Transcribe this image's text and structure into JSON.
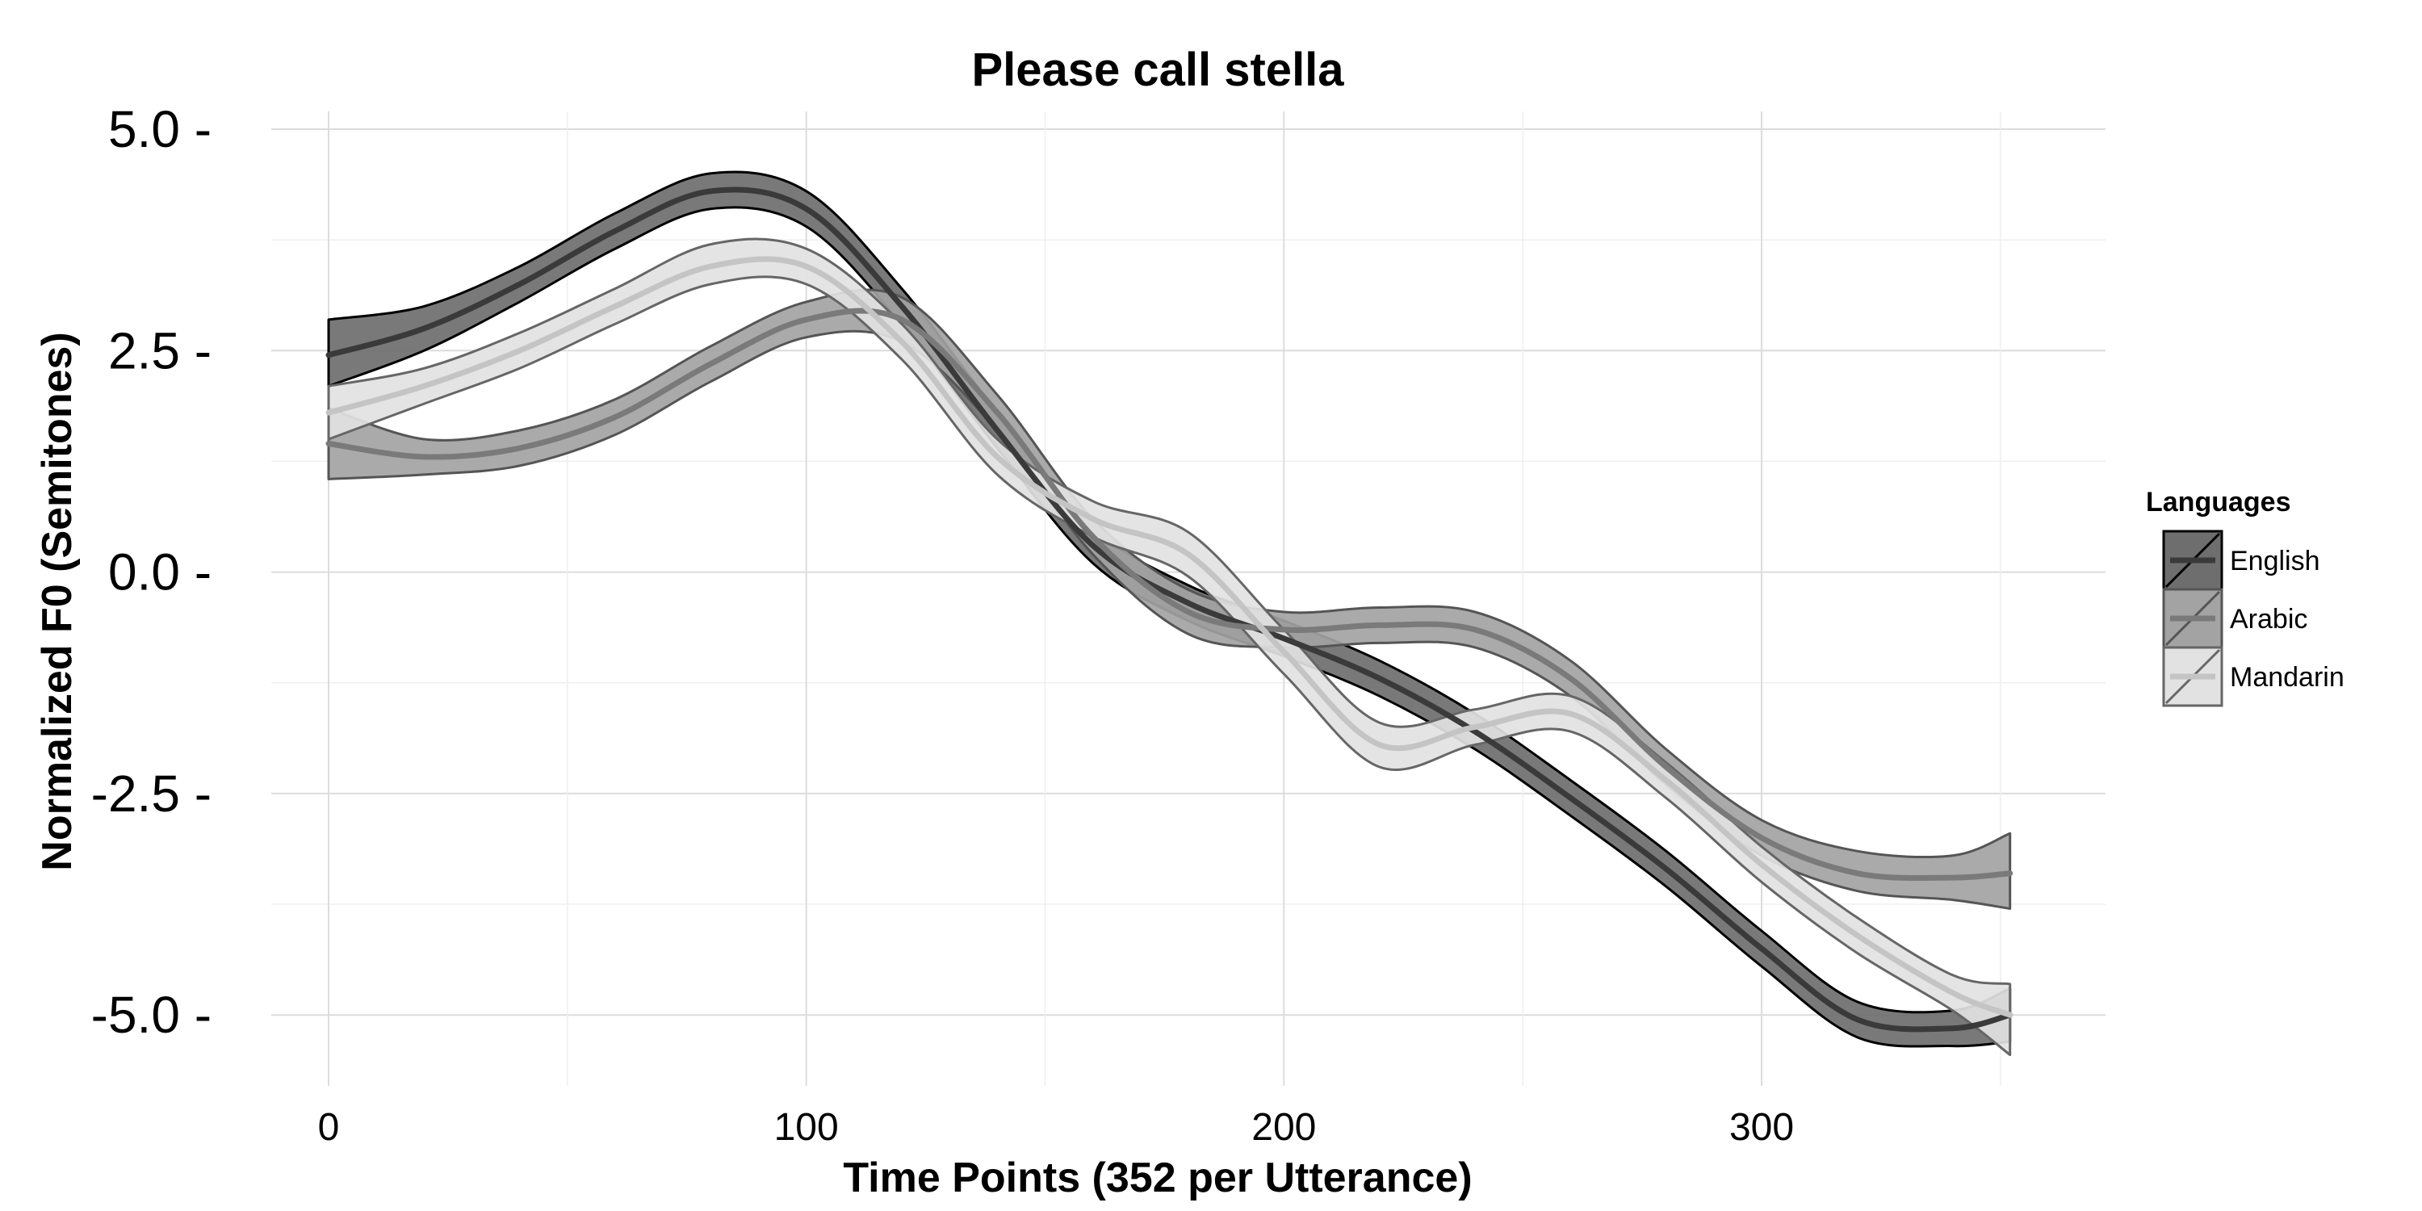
{
  "chart_data": {
    "type": "line",
    "title": "Please call stella",
    "xlabel": "Time Points (352 per Utterance)",
    "ylabel": "Normalized F0 (Semitones)",
    "xlim": [
      -12,
      372
    ],
    "ylim": [
      -5.8,
      5.2
    ],
    "xticks": [
      0,
      100,
      200,
      300
    ],
    "xtick_labels": [
      "0",
      "100",
      "200",
      "300"
    ],
    "yticks": [
      5.0,
      2.5,
      0.0,
      -2.5,
      -5.0
    ],
    "ytick_labels": [
      "5.0 -",
      "2.5 -",
      "0.0 -",
      "-2.5 -",
      "-5.0 -"
    ],
    "grid": true,
    "legend_position": "right",
    "legend_title": "Languages",
    "series": [
      {
        "name": "English",
        "fill": "#6e6e6e",
        "line": "#3a3a3a",
        "edge": "#000000",
        "x": [
          0,
          20,
          40,
          60,
          80,
          100,
          120,
          140,
          160,
          180,
          200,
          220,
          240,
          260,
          280,
          300,
          320,
          340,
          352
        ],
        "y": [
          2.45,
          2.75,
          3.25,
          3.85,
          4.3,
          4.1,
          3.0,
          1.6,
          0.3,
          -0.35,
          -0.75,
          -1.2,
          -1.8,
          -2.55,
          -3.35,
          -4.25,
          -5.05,
          -5.15,
          -5.0
        ],
        "upper": [
          2.85,
          3.0,
          3.45,
          4.05,
          4.5,
          4.3,
          3.2,
          1.8,
          0.5,
          -0.15,
          -0.55,
          -1.0,
          -1.6,
          -2.35,
          -3.15,
          -4.05,
          -4.85,
          -4.95,
          -4.7
        ],
        "lower": [
          2.1,
          2.5,
          3.05,
          3.65,
          4.1,
          3.9,
          2.8,
          1.4,
          0.1,
          -0.55,
          -0.95,
          -1.4,
          -2.0,
          -2.75,
          -3.55,
          -4.45,
          -5.25,
          -5.35,
          -5.3
        ]
      },
      {
        "name": "Arabic",
        "fill": "#a3a3a3",
        "line": "#7a7a7a",
        "edge": "#555555",
        "x": [
          0,
          20,
          40,
          60,
          80,
          100,
          120,
          140,
          160,
          180,
          200,
          220,
          240,
          260,
          280,
          300,
          320,
          340,
          352
        ],
        "y": [
          1.45,
          1.3,
          1.4,
          1.75,
          2.35,
          2.85,
          2.85,
          1.8,
          0.4,
          -0.45,
          -0.65,
          -0.6,
          -0.65,
          -1.2,
          -2.2,
          -3.0,
          -3.4,
          -3.45,
          -3.4
        ],
        "upper": [
          1.85,
          1.5,
          1.6,
          1.95,
          2.55,
          3.05,
          3.1,
          2.0,
          0.6,
          -0.2,
          -0.45,
          -0.4,
          -0.45,
          -1.0,
          -2.0,
          -2.8,
          -3.15,
          -3.2,
          -2.95
        ],
        "lower": [
          1.05,
          1.1,
          1.2,
          1.55,
          2.15,
          2.65,
          2.6,
          1.6,
          0.2,
          -0.7,
          -0.85,
          -0.8,
          -0.85,
          -1.4,
          -2.4,
          -3.2,
          -3.6,
          -3.7,
          -3.8
        ]
      },
      {
        "name": "Mandarin",
        "fill": "#e2e2e2",
        "line": "#c4c4c4",
        "edge": "#666666",
        "x": [
          0,
          20,
          40,
          60,
          80,
          100,
          120,
          140,
          160,
          180,
          200,
          220,
          240,
          260,
          280,
          300,
          320,
          340,
          352
        ],
        "y": [
          1.8,
          2.1,
          2.5,
          3.0,
          3.45,
          3.45,
          2.6,
          1.3,
          0.6,
          0.2,
          -0.9,
          -1.95,
          -1.75,
          -1.6,
          -2.35,
          -3.3,
          -4.1,
          -4.75,
          -5.0
        ],
        "upper": [
          2.1,
          2.3,
          2.7,
          3.2,
          3.7,
          3.65,
          2.8,
          1.5,
          0.8,
          0.45,
          -0.65,
          -1.7,
          -1.55,
          -1.4,
          -2.15,
          -3.1,
          -3.9,
          -4.55,
          -4.65
        ],
        "lower": [
          1.5,
          1.9,
          2.3,
          2.8,
          3.25,
          3.25,
          2.4,
          1.1,
          0.4,
          -0.05,
          -1.15,
          -2.2,
          -1.95,
          -1.8,
          -2.55,
          -3.5,
          -4.3,
          -4.95,
          -5.45
        ]
      }
    ]
  }
}
